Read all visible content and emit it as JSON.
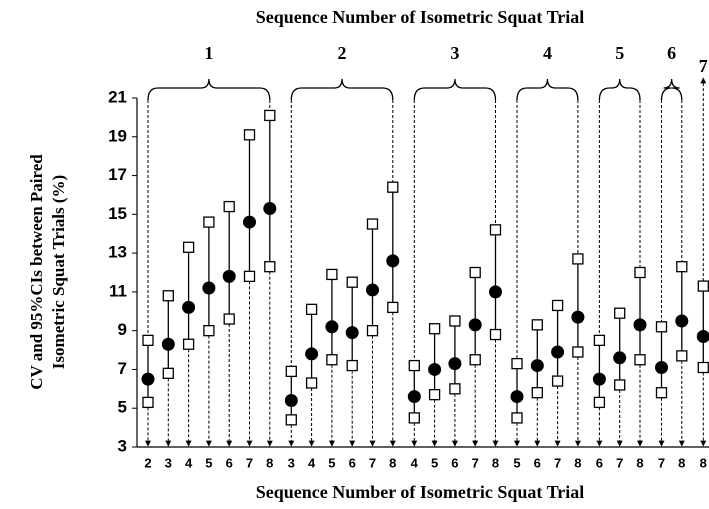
{
  "chart_data": {
    "type": "errorbar",
    "title": "Sequence Number of Isometric Squat Trial",
    "xlabel": "Sequence Number of Isometric Squat Trial",
    "ylabel": [
      "CV and 95%CIs between Paired",
      "Isometric Squat Trials (%)"
    ],
    "ylim": [
      3,
      21
    ],
    "yticks": [
      3,
      5,
      7,
      9,
      11,
      13,
      15,
      17,
      19,
      21
    ],
    "groups": [
      {
        "label": "1",
        "categories": [
          2,
          3,
          4,
          5,
          6,
          7,
          8
        ],
        "values": [
          6.5,
          8.3,
          10.2,
          11.2,
          11.8,
          14.6,
          15.3
        ],
        "lower": [
          5.3,
          6.8,
          8.3,
          9.0,
          9.6,
          11.8,
          12.3
        ],
        "upper": [
          8.5,
          10.8,
          13.3,
          14.6,
          15.4,
          19.1,
          20.1
        ]
      },
      {
        "label": "2",
        "categories": [
          3,
          4,
          5,
          6,
          7,
          8
        ],
        "values": [
          5.4,
          7.8,
          9.2,
          8.9,
          11.1,
          12.6
        ],
        "lower": [
          4.4,
          6.3,
          7.5,
          7.2,
          9.0,
          10.2
        ],
        "upper": [
          6.9,
          10.1,
          11.9,
          11.5,
          14.5,
          16.4
        ]
      },
      {
        "label": "3",
        "categories": [
          4,
          5,
          6,
          7,
          8
        ],
        "values": [
          5.6,
          7.0,
          7.3,
          9.3,
          11.0
        ],
        "lower": [
          4.5,
          5.7,
          6.0,
          7.5,
          8.8
        ],
        "upper": [
          7.2,
          9.1,
          9.5,
          12.0,
          14.2
        ]
      },
      {
        "label": "4",
        "categories": [
          5,
          6,
          7,
          8
        ],
        "values": [
          5.6,
          7.2,
          7.9,
          9.7
        ],
        "lower": [
          4.5,
          5.8,
          6.4,
          7.9
        ],
        "upper": [
          7.3,
          9.3,
          10.3,
          12.7
        ]
      },
      {
        "label": "5",
        "categories": [
          6,
          7,
          8
        ],
        "values": [
          6.5,
          7.6,
          9.3
        ],
        "lower": [
          5.3,
          6.2,
          7.5
        ],
        "upper": [
          8.5,
          9.9,
          12.0
        ]
      },
      {
        "label": "6",
        "categories": [
          7,
          8
        ],
        "values": [
          7.1,
          9.5
        ],
        "lower": [
          5.8,
          7.7
        ],
        "upper": [
          9.2,
          12.3
        ]
      },
      {
        "label": "7",
        "categories": [
          8
        ],
        "values": [
          8.7
        ],
        "lower": [
          7.1
        ],
        "upper": [
          11.3
        ]
      }
    ]
  }
}
